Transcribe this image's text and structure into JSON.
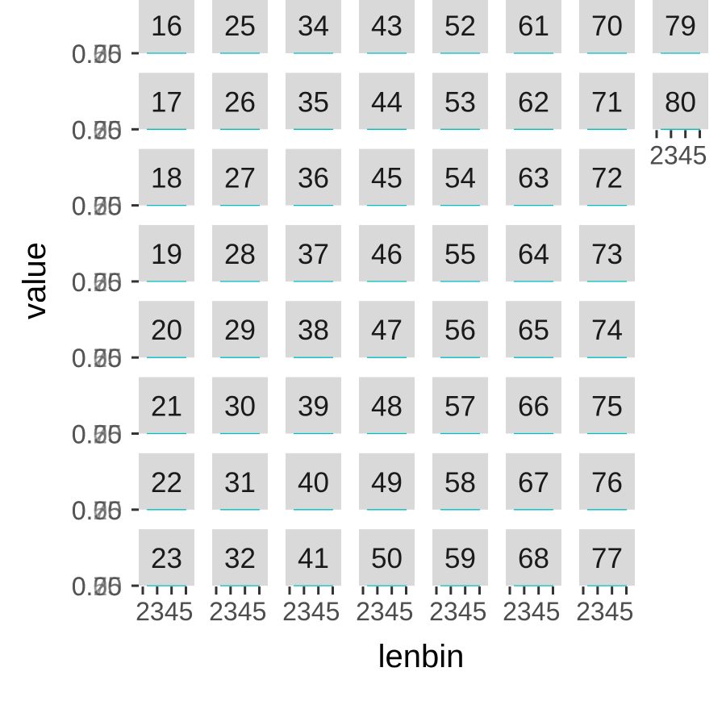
{
  "chart_data": {
    "type": "line",
    "xlabel": "lenbin",
    "ylabel": "value",
    "x_ticks": [
      "2",
      "3",
      "4",
      "5"
    ],
    "y_tick_labels": [
      "0.00",
      "0.25",
      "0.50",
      "0.75"
    ],
    "y_tick_display": "0.25",
    "series_color": "#00bfc4",
    "strip_color": "#d9d9d9",
    "tick_color": "#333333",
    "panels": [
      {
        "label": "16",
        "x": [
          2,
          3,
          4,
          5
        ],
        "y": [
          0,
          0,
          0,
          0
        ]
      },
      {
        "label": "17",
        "x": [
          2,
          3,
          4,
          5
        ],
        "y": [
          0,
          0,
          0,
          0
        ]
      },
      {
        "label": "18",
        "x": [
          2,
          3,
          4,
          5
        ],
        "y": [
          0,
          0,
          0,
          0
        ]
      },
      {
        "label": "19",
        "x": [
          2,
          3,
          4,
          5
        ],
        "y": [
          0,
          0,
          0,
          0
        ]
      },
      {
        "label": "20",
        "x": [
          2,
          3,
          4,
          5
        ],
        "y": [
          0,
          0,
          0,
          0
        ]
      },
      {
        "label": "21",
        "x": [
          2,
          3,
          4,
          5
        ],
        "y": [
          0,
          0,
          0,
          0
        ]
      },
      {
        "label": "22",
        "x": [
          2,
          3,
          4,
          5
        ],
        "y": [
          0,
          0,
          0,
          0
        ]
      },
      {
        "label": "23",
        "x": [
          2,
          3,
          4,
          5
        ],
        "y": [
          0,
          0,
          0,
          0
        ]
      },
      {
        "label": "25",
        "x": [
          2,
          3,
          4,
          5
        ],
        "y": [
          0,
          0,
          0,
          0
        ]
      },
      {
        "label": "26",
        "x": [
          2,
          3,
          4,
          5
        ],
        "y": [
          0,
          0,
          0,
          0
        ]
      },
      {
        "label": "27",
        "x": [
          2,
          3,
          4,
          5
        ],
        "y": [
          0,
          0,
          0,
          0
        ]
      },
      {
        "label": "28",
        "x": [
          2,
          3,
          4,
          5
        ],
        "y": [
          0,
          0,
          0,
          0
        ]
      },
      {
        "label": "29",
        "x": [
          2,
          3,
          4,
          5
        ],
        "y": [
          0,
          0,
          0,
          0
        ]
      },
      {
        "label": "30",
        "x": [
          2,
          3,
          4,
          5
        ],
        "y": [
          0,
          0,
          0,
          0
        ]
      },
      {
        "label": "31",
        "x": [
          2,
          3,
          4,
          5
        ],
        "y": [
          0,
          0,
          0,
          0
        ]
      },
      {
        "label": "32",
        "x": [
          2,
          3,
          4,
          5
        ],
        "y": [
          0,
          0,
          0,
          0
        ]
      },
      {
        "label": "34",
        "x": [
          2,
          3,
          4,
          5
        ],
        "y": [
          0,
          0,
          0,
          0
        ]
      },
      {
        "label": "35",
        "x": [
          2,
          3,
          4,
          5
        ],
        "y": [
          0,
          0,
          0,
          0
        ]
      },
      {
        "label": "36",
        "x": [
          2,
          3,
          4,
          5
        ],
        "y": [
          0,
          0,
          0,
          0
        ]
      },
      {
        "label": "37",
        "x": [
          2,
          3,
          4,
          5
        ],
        "y": [
          0,
          0,
          0,
          0
        ]
      },
      {
        "label": "38",
        "x": [
          2,
          3,
          4,
          5
        ],
        "y": [
          0,
          0,
          0,
          0
        ]
      },
      {
        "label": "39",
        "x": [
          2,
          3,
          4,
          5
        ],
        "y": [
          0,
          0,
          0,
          0
        ]
      },
      {
        "label": "40",
        "x": [
          2,
          3,
          4,
          5
        ],
        "y": [
          0,
          0,
          0,
          0
        ]
      },
      {
        "label": "41",
        "x": [
          2,
          3,
          4,
          5
        ],
        "y": [
          0,
          0,
          0,
          0
        ]
      },
      {
        "label": "43",
        "x": [
          2,
          3,
          4,
          5
        ],
        "y": [
          0,
          0,
          0,
          0
        ]
      },
      {
        "label": "44",
        "x": [
          2,
          3,
          4,
          5
        ],
        "y": [
          0,
          0,
          0,
          0
        ]
      },
      {
        "label": "45",
        "x": [
          2,
          3,
          4,
          5
        ],
        "y": [
          0,
          0,
          0,
          0
        ]
      },
      {
        "label": "46",
        "x": [
          2,
          3,
          4,
          5
        ],
        "y": [
          0,
          0,
          0,
          0
        ]
      },
      {
        "label": "47",
        "x": [
          2,
          3,
          4,
          5
        ],
        "y": [
          0,
          0,
          0,
          0
        ]
      },
      {
        "label": "48",
        "x": [
          2,
          3,
          4,
          5
        ],
        "y": [
          0,
          0,
          0,
          0
        ]
      },
      {
        "label": "49",
        "x": [
          2,
          3,
          4,
          5
        ],
        "y": [
          0,
          0,
          0,
          0
        ]
      },
      {
        "label": "50",
        "x": [
          2,
          3,
          4,
          5
        ],
        "y": [
          0,
          0,
          0,
          0
        ]
      },
      {
        "label": "52",
        "x": [
          2,
          3,
          4,
          5
        ],
        "y": [
          0,
          0,
          0,
          0
        ]
      },
      {
        "label": "53",
        "x": [
          2,
          3,
          4,
          5
        ],
        "y": [
          0,
          0,
          0,
          0
        ]
      },
      {
        "label": "54",
        "x": [
          2,
          3,
          4,
          5
        ],
        "y": [
          0,
          0,
          0,
          0
        ]
      },
      {
        "label": "55",
        "x": [
          2,
          3,
          4,
          5
        ],
        "y": [
          0,
          0,
          0,
          0
        ]
      },
      {
        "label": "56",
        "x": [
          2,
          3,
          4,
          5
        ],
        "y": [
          0,
          0,
          0,
          0
        ]
      },
      {
        "label": "57",
        "x": [
          2,
          3,
          4,
          5
        ],
        "y": [
          0,
          0,
          0,
          0
        ]
      },
      {
        "label": "58",
        "x": [
          2,
          3,
          4,
          5
        ],
        "y": [
          0,
          0,
          0,
          0
        ]
      },
      {
        "label": "59",
        "x": [
          2,
          3,
          4,
          5
        ],
        "y": [
          0,
          0,
          0,
          0
        ]
      },
      {
        "label": "61",
        "x": [
          2,
          3,
          4,
          5
        ],
        "y": [
          0,
          0,
          0,
          0
        ]
      },
      {
        "label": "62",
        "x": [
          2,
          3,
          4,
          5
        ],
        "y": [
          0,
          0,
          0,
          0
        ]
      },
      {
        "label": "63",
        "x": [
          2,
          3,
          4,
          5
        ],
        "y": [
          0,
          0,
          0,
          0
        ]
      },
      {
        "label": "64",
        "x": [
          2,
          3,
          4,
          5
        ],
        "y": [
          0,
          0,
          0,
          0
        ]
      },
      {
        "label": "65",
        "x": [
          2,
          3,
          4,
          5
        ],
        "y": [
          0,
          0,
          0,
          0
        ]
      },
      {
        "label": "66",
        "x": [
          2,
          3,
          4,
          5
        ],
        "y": [
          0,
          0,
          0,
          0
        ]
      },
      {
        "label": "67",
        "x": [
          2,
          3,
          4,
          5
        ],
        "y": [
          0,
          0,
          0,
          0
        ]
      },
      {
        "label": "68",
        "x": [
          2,
          3,
          4,
          5
        ],
        "y": [
          0,
          0,
          0,
          0
        ]
      },
      {
        "label": "70",
        "x": [
          2,
          3,
          4,
          5
        ],
        "y": [
          0,
          0,
          0,
          0
        ]
      },
      {
        "label": "71",
        "x": [
          2,
          3,
          4,
          5
        ],
        "y": [
          0,
          0,
          0,
          0
        ]
      },
      {
        "label": "72",
        "x": [
          2,
          3,
          4,
          5
        ],
        "y": [
          0,
          0,
          0,
          0
        ]
      },
      {
        "label": "73",
        "x": [
          2,
          3,
          4,
          5
        ],
        "y": [
          0,
          0,
          0,
          0
        ]
      },
      {
        "label": "74",
        "x": [
          2,
          3,
          4,
          5
        ],
        "y": [
          0,
          0,
          0,
          0
        ]
      },
      {
        "label": "75",
        "x": [
          2,
          3,
          4,
          5
        ],
        "y": [
          0,
          0,
          0,
          0
        ]
      },
      {
        "label": "76",
        "x": [
          2,
          3,
          4,
          5
        ],
        "y": [
          0,
          0,
          0,
          0
        ]
      },
      {
        "label": "77",
        "x": [
          2,
          3,
          4,
          5
        ],
        "y": [
          0,
          0,
          0,
          0
        ]
      },
      {
        "label": "79",
        "x": [
          2,
          3,
          4,
          5
        ],
        "y": [
          0,
          0,
          0,
          0
        ]
      },
      {
        "label": "80",
        "x": [
          2,
          3,
          4,
          5
        ],
        "y": [
          0,
          0,
          0,
          0
        ]
      }
    ]
  }
}
